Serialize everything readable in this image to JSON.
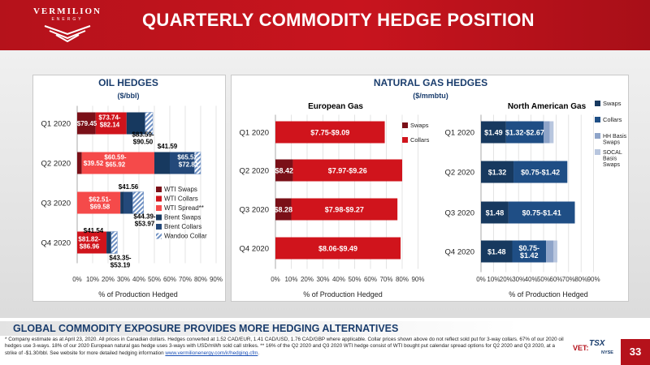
{
  "header": {
    "logo_top": "VERMILION",
    "logo_bottom": "ENERGY",
    "title": "QUARTERLY COMMODITY HEDGE POSITION"
  },
  "colors": {
    "brand_red": "#b5121b",
    "navy": "#1a3d6d",
    "wti_swaps": "#7a1018",
    "wti_collars": "#d0141c",
    "wti_spread": "#f54a4a",
    "brent_swaps": "#17395f",
    "brent_collars": "#24497a",
    "wandoo": "#9ab4d8",
    "gas_swaps": "#7a1018",
    "gas_collars": "#d0141c",
    "na_swaps": "#17395f",
    "na_collars": "#1f4e85",
    "hh_basis": "#7f97c1",
    "socal_basis": "#a6b8d6"
  },
  "chart_data": [
    {
      "type": "bar",
      "orientation": "horizontal",
      "stacked": true,
      "title": "OIL HEDGES",
      "subtitle": "($/bbl)",
      "xlabel": "% of Production Hedged",
      "ylabel": "",
      "categories": [
        "Q1 2020",
        "Q2 2020",
        "Q3 2020",
        "Q4 2020"
      ],
      "xlim": [
        0,
        90
      ],
      "xticks": [
        "0%",
        "10%",
        "20%",
        "30%",
        "40%",
        "50%",
        "60%",
        "70%",
        "80%",
        "90%"
      ],
      "legend": "right",
      "series": [
        {
          "name": "WTI Swaps",
          "values": [
            12,
            3,
            0,
            0
          ]
        },
        {
          "name": "WTI Collars",
          "values": [
            20,
            0,
            0,
            19
          ]
        },
        {
          "name": "WTI Spread**",
          "values": [
            0,
            47,
            28,
            0
          ]
        },
        {
          "name": "Brent Swaps",
          "values": [
            12,
            10,
            2,
            3
          ]
        },
        {
          "name": "Brent Collars",
          "values": [
            0,
            16,
            6,
            0
          ]
        },
        {
          "name": "Wandoo Collar",
          "values": [
            5,
            4,
            7,
            4
          ]
        }
      ],
      "annotations": [
        {
          "category": "Q1 2020",
          "labels": [
            "$79.45",
            "$73.74-\n$82.14",
            "$83.59-\n$90.50"
          ]
        },
        {
          "category": "Q2 2020",
          "labels": [
            "$39.52",
            "$60.59-\n$65.92",
            "$41.59",
            "$65.52-\n$72.81"
          ]
        },
        {
          "category": "Q3 2020",
          "labels": [
            "$62.51-\n$69.58",
            "$41.56",
            "$44.39-\n$53.97"
          ]
        },
        {
          "category": "Q4 2020",
          "labels": [
            "$81.82-\n$86.96",
            "$41.54",
            "$43.35-\n$53.19"
          ]
        }
      ]
    },
    {
      "type": "bar",
      "orientation": "horizontal",
      "stacked": true,
      "group_title": "NATURAL GAS HEDGES",
      "group_subtitle": "($/mmbtu)",
      "title": "European Gas",
      "xlabel": "% of Production Hedged",
      "categories": [
        "Q1 2020",
        "Q2 2020",
        "Q3 2020",
        "Q4 2020"
      ],
      "xlim": [
        0,
        90
      ],
      "xticks": [
        "0%",
        "10%",
        "20%",
        "30%",
        "40%",
        "50%",
        "60%",
        "70%",
        "80%",
        "90%"
      ],
      "legend": "right",
      "series": [
        {
          "name": "Swaps",
          "values": [
            0,
            11,
            10,
            0
          ]
        },
        {
          "name": "Collars",
          "values": [
            69,
            69,
            67,
            79
          ]
        }
      ],
      "labels": [
        [
          "",
          "$7.75-$9.09"
        ],
        [
          "$8.42",
          "$7.97-$9.26"
        ],
        [
          "$8.28",
          "$7.98-$9.27"
        ],
        [
          "",
          "$8.06-$9.49"
        ]
      ]
    },
    {
      "type": "bar",
      "orientation": "horizontal",
      "stacked": true,
      "title": "North American Gas",
      "xlabel": "% of Production Hedged",
      "categories": [
        "Q1 2020",
        "Q2 2020",
        "Q3 2020",
        "Q4 2020"
      ],
      "xlim": [
        0,
        90
      ],
      "xticks": [
        "0%",
        "10%",
        "20%",
        "30%",
        "40%",
        "50%",
        "60%",
        "70%",
        "80%",
        "90%"
      ],
      "legend": "right",
      "series": [
        {
          "name": "Swaps",
          "values": [
            20,
            26,
            22,
            25
          ]
        },
        {
          "name": "Collars",
          "values": [
            30,
            43,
            53,
            27
          ]
        },
        {
          "name": "HH Basis Swaps",
          "values": [
            5,
            0,
            0,
            6
          ]
        },
        {
          "name": "SOCAL Basis Swaps",
          "values": [
            3,
            0,
            0,
            3
          ]
        }
      ],
      "labels": [
        [
          "$1.49",
          "$1.32-$2.67",
          "",
          ""
        ],
        [
          "$1.32",
          "$0.75-$1.42",
          "",
          ""
        ],
        [
          "$1.48",
          "$0.75-$1.41",
          "",
          ""
        ],
        [
          "$1.48",
          "$0.75-\n$1.42",
          "",
          ""
        ]
      ]
    }
  ],
  "footer": {
    "title": "GLOBAL COMMODITY EXPOSURE PROVIDES MORE HEDGING ALTERNATIVES",
    "footnote": "* Company estimate as at April 23, 2020. All prices in Canadian dollars. Hedges converted at 1.52 CAD/EUR, 1.41 CAD/USD, 1.76 CAD/GBP where applicable. Collar prices shown above do not reflect sold put for 3-way collars. 67% of our 2020 oil hedges use 3-ways. 18% of our 2020 European natural gas hedge uses 3-ways with USD/mWh sold call strikes. ** 16% of the Q2 2020 and Q3 2020 WTI hedge consist of WTI bought put calendar spread options for Q2 2020 and Q3 2020, at a strike of -$1.30/bbl.  See website for more detailed hedging information",
    "link": "www.vermilionenergy.com/ir/hedging.cfm",
    "link_suffix": ".",
    "ticker": "VET:",
    "tsx": "TSX",
    "nyse": "NYSE",
    "page": "33"
  }
}
